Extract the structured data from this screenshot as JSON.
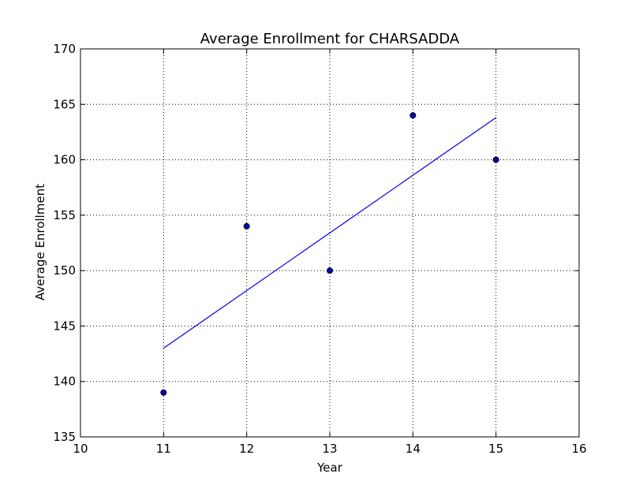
{
  "chart_data": {
    "type": "scatter",
    "title": "Average Enrollment for CHARSADDA",
    "xlabel": "Year",
    "ylabel": "Average Enrollment",
    "xlim": [
      10,
      16
    ],
    "ylim": [
      135,
      170
    ],
    "xticks": [
      10,
      11,
      12,
      13,
      14,
      15,
      16
    ],
    "yticks": [
      135,
      140,
      145,
      150,
      155,
      160,
      165,
      170
    ],
    "grid": true,
    "series": [
      {
        "kind": "scatter",
        "color": "#0000bf",
        "edge_color": "#000000",
        "x": [
          11,
          12,
          13,
          14,
          15
        ],
        "y": [
          139,
          154,
          150,
          164,
          160
        ]
      },
      {
        "kind": "line",
        "color": "#0000ff",
        "x": [
          11,
          15
        ],
        "y": [
          143,
          163.8
        ]
      }
    ]
  }
}
